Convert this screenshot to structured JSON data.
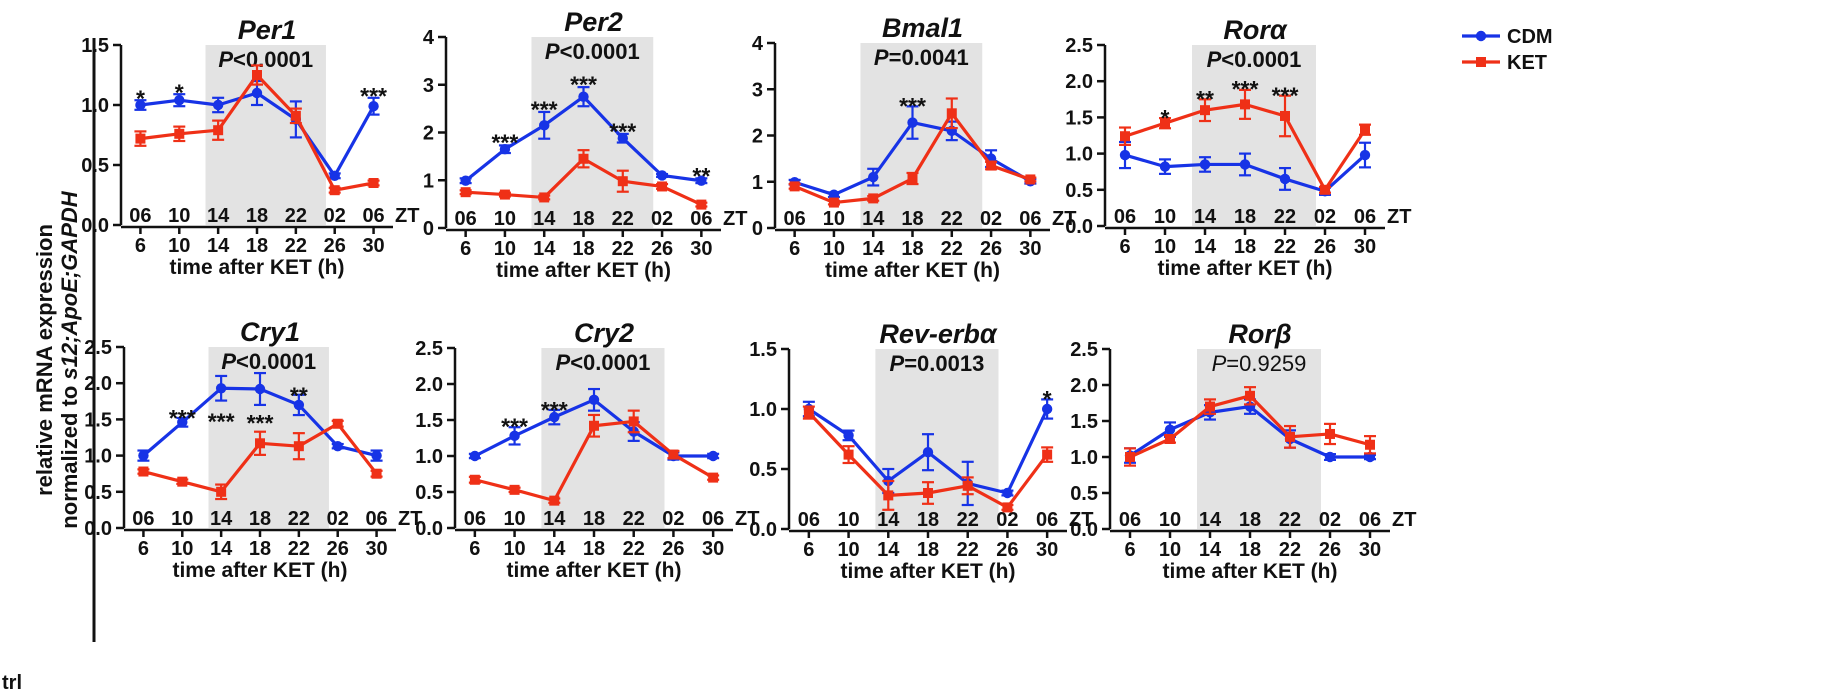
{
  "figure": {
    "ylabel_line1": "relative mRNA expression",
    "ylabel_line2_prefix": "normalized to ",
    "ylabel_line2_italic": "s12;ApoE;GAPDH",
    "corner_fragment": "trl"
  },
  "legend": [
    {
      "name": "CDM",
      "color": "#1733e6"
    },
    {
      "name": "KET",
      "color": "#ef3017"
    }
  ],
  "chart_data": [
    {
      "type": "line",
      "title": "Per1",
      "pvalue_prefix": "P",
      "pvalue_rest": "<0.0001",
      "pvalue_bold": true,
      "xlabel": "time after KET (h)",
      "x": [
        6,
        10,
        14,
        18,
        22,
        26,
        30
      ],
      "xticks": [
        "6",
        "10",
        "14",
        "18",
        "22",
        "26",
        "30"
      ],
      "zt_ticks": [
        "06",
        "10",
        "14",
        "18",
        "22",
        "02",
        "06"
      ],
      "zt_label": "ZT",
      "ylim": [
        0,
        1.5
      ],
      "yticks": [
        "0.0",
        "0.5",
        "1.0",
        "1.5"
      ],
      "shaded_x": [
        12.7,
        25.1
      ],
      "series": [
        {
          "name": "CDM",
          "values": [
            1.0,
            1.04,
            1.0,
            1.1,
            0.88,
            0.41,
            0.99
          ],
          "errors": [
            0.04,
            0.05,
            0.06,
            0.1,
            0.15,
            0.02,
            0.07
          ]
        },
        {
          "name": "KET",
          "values": [
            0.72,
            0.76,
            0.79,
            1.25,
            0.91,
            0.29,
            0.35
          ],
          "errors": [
            0.06,
            0.06,
            0.08,
            0.08,
            0.06,
            0.02,
            0.02
          ]
        }
      ],
      "stars": [
        {
          "x": 6,
          "y": 1.07,
          "text": "*"
        },
        {
          "x": 10,
          "y": 1.12,
          "text": "*"
        },
        {
          "x": 30,
          "y": 1.09,
          "text": "***"
        }
      ]
    },
    {
      "type": "line",
      "title": "Per2",
      "pvalue_prefix": "P",
      "pvalue_rest": "<0.0001",
      "pvalue_bold": true,
      "xlabel": "time after KET (h)",
      "x": [
        6,
        10,
        14,
        18,
        22,
        26,
        30
      ],
      "xticks": [
        "6",
        "10",
        "14",
        "18",
        "22",
        "26",
        "30"
      ],
      "zt_ticks": [
        "06",
        "10",
        "14",
        "18",
        "22",
        "02",
        "06"
      ],
      "zt_label": "ZT",
      "ylim": [
        0,
        4
      ],
      "yticks": [
        "0",
        "1",
        "2",
        "3",
        "4"
      ],
      "shaded_x": [
        12.7,
        25.1
      ],
      "series": [
        {
          "name": "CDM",
          "values": [
            0.99,
            1.65,
            2.15,
            2.75,
            1.88,
            1.1,
            0.99
          ],
          "errors": [
            0.05,
            0.08,
            0.28,
            0.2,
            0.09,
            0.03,
            0.05
          ]
        },
        {
          "name": "KET",
          "values": [
            0.75,
            0.7,
            0.64,
            1.45,
            0.98,
            0.87,
            0.49
          ],
          "errors": [
            0.04,
            0.04,
            0.04,
            0.18,
            0.22,
            0.05,
            0.04
          ]
        }
      ],
      "stars": [
        {
          "x": 10,
          "y": 1.83,
          "text": "***"
        },
        {
          "x": 14,
          "y": 2.52,
          "text": "***"
        },
        {
          "x": 18,
          "y": 3.05,
          "text": "***"
        },
        {
          "x": 22,
          "y": 2.06,
          "text": "***"
        },
        {
          "x": 30,
          "y": 1.13,
          "text": "**"
        }
      ]
    },
    {
      "type": "line",
      "title": "Bmal1",
      "pvalue_prefix": "P",
      "pvalue_rest": "=0.0041",
      "pvalue_bold": true,
      "xlabel": "time after KET (h)",
      "x": [
        6,
        10,
        14,
        18,
        22,
        26,
        30
      ],
      "xticks": [
        "6",
        "10",
        "14",
        "18",
        "22",
        "26",
        "30"
      ],
      "zt_ticks": [
        "06",
        "10",
        "14",
        "18",
        "22",
        "02",
        "06"
      ],
      "zt_label": "ZT",
      "ylim": [
        0,
        4
      ],
      "yticks": [
        "0",
        "1",
        "2",
        "3",
        "4"
      ],
      "shaded_x": [
        12.7,
        25.1
      ],
      "series": [
        {
          "name": "CDM",
          "values": [
            0.99,
            0.72,
            1.1,
            2.28,
            2.1,
            1.5,
            1.01
          ],
          "errors": [
            0.05,
            0.05,
            0.18,
            0.35,
            0.2,
            0.18,
            0.05
          ]
        },
        {
          "name": "KET",
          "values": [
            0.9,
            0.55,
            0.64,
            1.07,
            2.48,
            1.35,
            1.05
          ],
          "errors": [
            0.05,
            0.04,
            0.05,
            0.12,
            0.32,
            0.08,
            0.04
          ]
        }
      ],
      "stars": [
        {
          "x": 18,
          "y": 2.68,
          "text": "***"
        }
      ]
    },
    {
      "type": "line",
      "title": "Rorα",
      "pvalue_prefix": "P",
      "pvalue_rest": "<0.0001",
      "pvalue_bold": true,
      "xlabel": "time after KET (h)",
      "x": [
        6,
        10,
        14,
        18,
        22,
        26,
        30
      ],
      "xticks": [
        "6",
        "10",
        "14",
        "18",
        "22",
        "26",
        "30"
      ],
      "zt_ticks": [
        "06",
        "10",
        "14",
        "18",
        "22",
        "02",
        "06"
      ],
      "zt_label": "ZT",
      "ylim": [
        0,
        2.5
      ],
      "yticks": [
        "0.0",
        "0.5",
        "1.0",
        "1.5",
        "2.0",
        "2.5"
      ],
      "shaded_x": [
        12.7,
        25.1
      ],
      "series": [
        {
          "name": "CDM",
          "values": [
            0.98,
            0.82,
            0.85,
            0.85,
            0.65,
            0.48,
            0.98
          ],
          "errors": [
            0.18,
            0.1,
            0.1,
            0.15,
            0.15,
            0.05,
            0.17
          ]
        },
        {
          "name": "KET",
          "values": [
            1.24,
            1.42,
            1.6,
            1.68,
            1.52,
            0.5,
            1.33
          ],
          "errors": [
            0.12,
            0.07,
            0.15,
            0.2,
            0.28,
            0.04,
            0.07
          ]
        }
      ],
      "stars": [
        {
          "x": 10,
          "y": 1.52,
          "text": "*"
        },
        {
          "x": 14,
          "y": 1.78,
          "text": "**"
        },
        {
          "x": 18,
          "y": 1.92,
          "text": "***"
        },
        {
          "x": 22,
          "y": 1.83,
          "text": "***"
        }
      ]
    },
    {
      "type": "line",
      "title": "Cry1",
      "pvalue_prefix": "P",
      "pvalue_rest": "<0.0001",
      "pvalue_bold": true,
      "xlabel": "time after KET (h)",
      "x": [
        6,
        10,
        14,
        18,
        22,
        26,
        30
      ],
      "xticks": [
        "6",
        "10",
        "14",
        "18",
        "22",
        "26",
        "30"
      ],
      "zt_ticks": [
        "06",
        "10",
        "14",
        "18",
        "22",
        "02",
        "06"
      ],
      "zt_label": "ZT",
      "ylim": [
        0,
        2.5
      ],
      "yticks": [
        "0.0",
        "0.5",
        "1.0",
        "1.5",
        "2.0",
        "2.5"
      ],
      "shaded_x": [
        12.7,
        25.1
      ],
      "series": [
        {
          "name": "CDM",
          "values": [
            1.0,
            1.46,
            1.93,
            1.92,
            1.7,
            1.13,
            1.0
          ],
          "errors": [
            0.07,
            0.06,
            0.17,
            0.22,
            0.14,
            0.03,
            0.07
          ]
        },
        {
          "name": "KET",
          "values": [
            0.78,
            0.64,
            0.5,
            1.17,
            1.13,
            1.44,
            0.75
          ],
          "errors": [
            0.03,
            0.03,
            0.1,
            0.16,
            0.18,
            0.04,
            0.04
          ]
        }
      ],
      "stars": [
        {
          "x": 10,
          "y": 1.55,
          "text": "***"
        },
        {
          "x": 14,
          "y": 1.5,
          "text": "***"
        },
        {
          "x": 18,
          "y": 1.48,
          "text": "***"
        },
        {
          "x": 22,
          "y": 1.86,
          "text": "**"
        }
      ]
    },
    {
      "type": "line",
      "title": "Cry2",
      "pvalue_prefix": "P",
      "pvalue_rest": "<0.0001",
      "pvalue_bold": true,
      "xlabel": "time after KET (h)",
      "x": [
        6,
        10,
        14,
        18,
        22,
        26,
        30
      ],
      "xticks": [
        "6",
        "10",
        "14",
        "18",
        "22",
        "26",
        "30"
      ],
      "zt_ticks": [
        "06",
        "10",
        "14",
        "18",
        "22",
        "02",
        "06"
      ],
      "zt_label": "ZT",
      "ylim": [
        0,
        2.5
      ],
      "yticks": [
        "0.0",
        "0.5",
        "1.0",
        "1.5",
        "2.0",
        "2.5"
      ],
      "shaded_x": [
        12.7,
        25.1
      ],
      "series": [
        {
          "name": "CDM",
          "values": [
            1.0,
            1.28,
            1.54,
            1.78,
            1.34,
            1.0,
            1.0
          ],
          "errors": [
            0.03,
            0.12,
            0.1,
            0.15,
            0.13,
            0.05,
            0.03
          ]
        },
        {
          "name": "KET",
          "values": [
            0.67,
            0.53,
            0.38,
            1.42,
            1.48,
            1.02,
            0.7
          ],
          "errors": [
            0.04,
            0.03,
            0.03,
            0.15,
            0.15,
            0.05,
            0.03
          ]
        }
      ],
      "stars": [
        {
          "x": 10,
          "y": 1.44,
          "text": "***"
        },
        {
          "x": 14,
          "y": 1.67,
          "text": "***"
        }
      ]
    },
    {
      "type": "line",
      "title": "Rev-erbα",
      "pvalue_prefix": "P",
      "pvalue_rest": "=0.0013",
      "pvalue_bold": true,
      "xlabel": "time after KET (h)",
      "x": [
        6,
        10,
        14,
        18,
        22,
        26,
        30
      ],
      "xticks": [
        "6",
        "10",
        "14",
        "18",
        "22",
        "26",
        "30"
      ],
      "zt_ticks": [
        "06",
        "10",
        "14",
        "18",
        "22",
        "02",
        "06"
      ],
      "zt_label": "ZT",
      "ylim": [
        0,
        1.5
      ],
      "yticks": [
        "0.0",
        "0.5",
        "1.0",
        "1.5"
      ],
      "shaded_x": [
        12.7,
        25.1
      ],
      "series": [
        {
          "name": "CDM",
          "values": [
            1.0,
            0.78,
            0.4,
            0.64,
            0.38,
            0.3,
            1.0
          ],
          "errors": [
            0.06,
            0.04,
            0.1,
            0.15,
            0.18,
            0.02,
            0.08
          ]
        },
        {
          "name": "KET",
          "values": [
            0.97,
            0.62,
            0.28,
            0.3,
            0.36,
            0.18,
            0.62
          ],
          "errors": [
            0.05,
            0.07,
            0.12,
            0.09,
            0.07,
            0.02,
            0.06
          ]
        }
      ],
      "stars": [
        {
          "x": 30,
          "y": 1.1,
          "text": "*"
        }
      ]
    },
    {
      "type": "line",
      "title": "Rorβ",
      "pvalue_prefix": "P",
      "pvalue_rest": "=0.9259",
      "pvalue_bold": false,
      "xlabel": "time after KET (h)",
      "x": [
        6,
        10,
        14,
        18,
        22,
        26,
        30
      ],
      "xticks": [
        "6",
        "10",
        "14",
        "18",
        "22",
        "26",
        "30"
      ],
      "zt_ticks": [
        "06",
        "10",
        "14",
        "18",
        "22",
        "02",
        "06"
      ],
      "zt_label": "ZT",
      "ylim": [
        0,
        2.5
      ],
      "yticks": [
        "0.0",
        "0.5",
        "1.0",
        "1.5",
        "2.0",
        "2.5"
      ],
      "shaded_x": [
        12.7,
        25.1
      ],
      "series": [
        {
          "name": "CDM",
          "values": [
            1.02,
            1.38,
            1.62,
            1.7,
            1.25,
            1.0,
            1.0
          ],
          "errors": [
            0.1,
            0.1,
            0.1,
            0.1,
            0.12,
            0.04,
            0.03
          ]
        },
        {
          "name": "KET",
          "values": [
            1.0,
            1.25,
            1.7,
            1.85,
            1.28,
            1.32,
            1.17
          ],
          "errors": [
            0.12,
            0.05,
            0.1,
            0.12,
            0.15,
            0.14,
            0.12
          ]
        }
      ],
      "stars": []
    }
  ]
}
